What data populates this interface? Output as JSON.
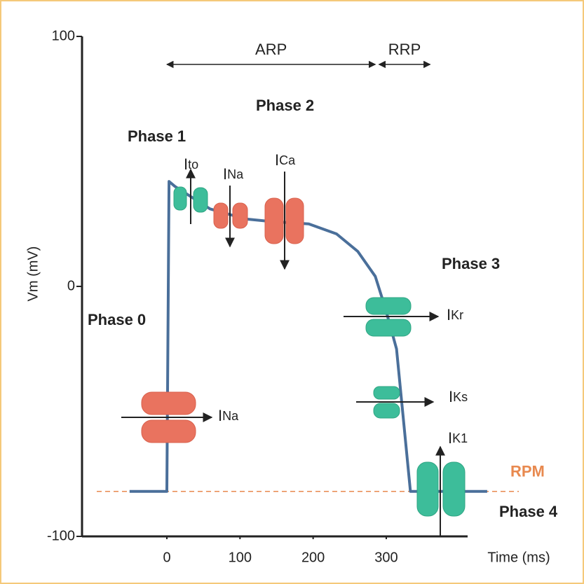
{
  "chart_data": {
    "type": "line",
    "xlabel": "Time (ms)",
    "ylabel": "Vm (mV)",
    "x": [
      -51,
      0,
      3,
      11,
      59,
      107,
      141,
      194,
      232,
      261,
      285,
      299,
      314,
      333,
      438
    ],
    "values": [
      -82,
      -82,
      42,
      40,
      31,
      27,
      26,
      25,
      21,
      14,
      4,
      -9,
      -25,
      -82,
      -82
    ],
    "color": "#4a6f9a",
    "xlim": [
      -116,
      440
    ],
    "ylim": [
      -100,
      100
    ],
    "xticks": [
      0,
      100,
      200,
      300
    ],
    "yticks": [
      -100,
      0,
      100
    ],
    "reference_line": {
      "label": "RPM",
      "value": -82,
      "color": "#e8894f"
    },
    "intervals": [
      {
        "label": "ARP",
        "start": 0,
        "end": 285
      },
      {
        "label": "RRP",
        "start": 290,
        "end": 360
      }
    ],
    "phases": [
      "Phase 0",
      "Phase 1",
      "Phase 2",
      "Phase 3",
      "Phase 4"
    ],
    "currents": [
      {
        "symbol": "I",
        "subscript": "to"
      },
      {
        "symbol": "I",
        "subscript": "Na"
      },
      {
        "symbol": "I",
        "subscript": "Ca"
      },
      {
        "symbol": "I",
        "subscript": "Na"
      },
      {
        "symbol": "I",
        "subscript": "Kr"
      },
      {
        "symbol": "I",
        "subscript": "Ks"
      },
      {
        "symbol": "I",
        "subscript": "K1"
      }
    ]
  }
}
